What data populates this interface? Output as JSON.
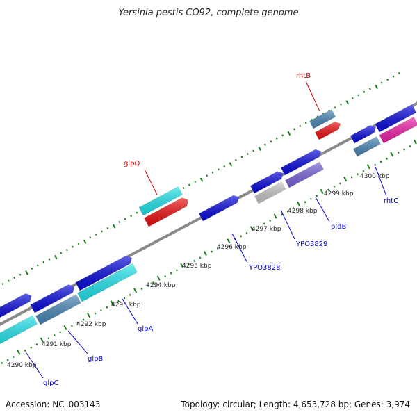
{
  "title": "Yersinia pestis CO92, complete genome",
  "footer": {
    "accession": "Accession: NC_003143",
    "summary": "Topology: circular; Length: 4,653,728 bp; Genes: 3,974"
  },
  "colors": {
    "backbone": "#7a7a7a",
    "ticks": "#1b7f1b",
    "label_red": "#cc0000",
    "label_blue": "#0000cc"
  },
  "kbp_labels": [
    "4290 kbp",
    "4291 kbp",
    "4292 kbp",
    "4293 kbp",
    "4294 kbp",
    "4295 kbp",
    "4296 kbp",
    "4297 kbp",
    "4298 kbp",
    "4299 kbp",
    "4300 kbp"
  ],
  "gene_labels": {
    "glpQ": "glpQ",
    "rhtB": "rhtB",
    "glpC": "glpC",
    "glpB": "glpB",
    "glpA": "glpA",
    "YPO3828": "YPO3828",
    "YPO3829": "YPO3829",
    "pldB": "pldB",
    "rhtC": "rhtC"
  },
  "features": [
    {
      "id": "feat-plus-1",
      "color": "#0a0adc"
    },
    {
      "id": "feat-plus-2",
      "color": "#0a0adc"
    },
    {
      "id": "feat-plus-3",
      "color": "#0a0adc"
    },
    {
      "id": "feat-plus-4",
      "color": "#0a0adc"
    },
    {
      "id": "feat-plus-5",
      "color": "#0a0adc"
    },
    {
      "id": "feat-plus-6",
      "color": "#0a0adc"
    },
    {
      "id": "feat-plus-7",
      "color": "#0a0adc"
    },
    {
      "id": "feat-plus-8",
      "color": "#0a0adc"
    },
    {
      "id": "feat-minus-1",
      "color": "#22e6ee"
    },
    {
      "id": "feat-minus-2",
      "color": "#4a88b8"
    },
    {
      "id": "feat-minus-3",
      "color": "#22e6ee"
    },
    {
      "id": "feat-minus-4",
      "color": "#c7c7c7"
    },
    {
      "id": "feat-minus-5",
      "color": "#7a63d8"
    },
    {
      "id": "feat-minus-6",
      "color": "#4a88b8"
    },
    {
      "id": "feat-minus-7",
      "color": "#ee22a8"
    },
    {
      "id": "feat-out-1",
      "color": "#22e6ee"
    },
    {
      "id": "feat-out-2",
      "color": "#ee1111"
    },
    {
      "id": "feat-out-3",
      "color": "#4a88b8"
    },
    {
      "id": "feat-out-4",
      "color": "#ee1111"
    }
  ]
}
